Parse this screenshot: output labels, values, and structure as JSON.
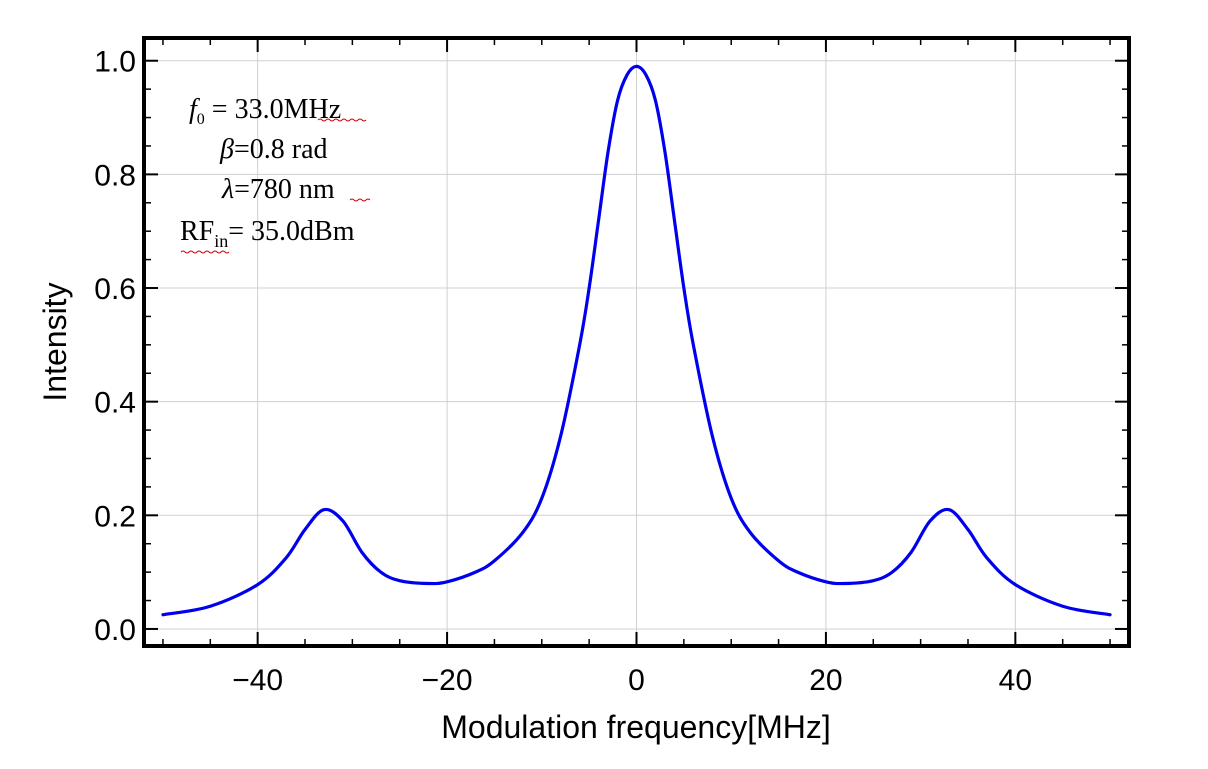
{
  "chart_data": {
    "type": "line",
    "title": "",
    "xlabel": "Modulation frequency[MHz]",
    "ylabel": "Intensity",
    "xlim": [
      -52,
      52
    ],
    "ylim": [
      -0.03,
      1.04
    ],
    "xticks": [
      -40,
      -20,
      0,
      20,
      40
    ],
    "xtick_labels": [
      "−40",
      "−20",
      "0",
      "20",
      "40"
    ],
    "yticks": [
      0.0,
      0.2,
      0.4,
      0.6,
      0.8,
      1.0
    ],
    "ytick_labels": [
      "0.0",
      "0.2",
      "0.4",
      "0.6",
      "0.8",
      "1.0"
    ],
    "grid": true,
    "line_color": "#0000ee",
    "series": [
      {
        "name": "Intensity",
        "x": [
          -50,
          -45,
          -40,
          -37,
          -35,
          -33,
          -31,
          -29,
          -27,
          -25,
          -22,
          -20,
          -17,
          -15,
          -12,
          -10,
          -8,
          -6,
          -5,
          -4,
          -3,
          -2,
          -1,
          0,
          1,
          2,
          3,
          4,
          5,
          6,
          8,
          10,
          12,
          15,
          17,
          20,
          22,
          25,
          27,
          29,
          31,
          33,
          35,
          37,
          40,
          45,
          50
        ],
        "y": [
          0.025,
          0.04,
          0.078,
          0.125,
          0.175,
          0.21,
          0.19,
          0.135,
          0.1,
          0.085,
          0.08,
          0.083,
          0.1,
          0.12,
          0.17,
          0.23,
          0.34,
          0.5,
          0.6,
          0.72,
          0.84,
          0.93,
          0.975,
          0.99,
          0.975,
          0.93,
          0.84,
          0.72,
          0.6,
          0.5,
          0.34,
          0.23,
          0.17,
          0.12,
          0.1,
          0.083,
          0.08,
          0.085,
          0.1,
          0.135,
          0.19,
          0.21,
          0.175,
          0.125,
          0.078,
          0.04,
          0.025
        ]
      }
    ],
    "annotations": {
      "f0": {
        "symbol": "f",
        "subscript": "0",
        "text": " = 33.0MHz"
      },
      "beta": {
        "symbol": "β",
        "text": "=0.8 rad"
      },
      "lambda": {
        "symbol": "λ",
        "text": "=780 nm"
      },
      "rf": {
        "symbol": "RF",
        "subscript": "in",
        "text": "= 35.0dBm"
      }
    }
  }
}
